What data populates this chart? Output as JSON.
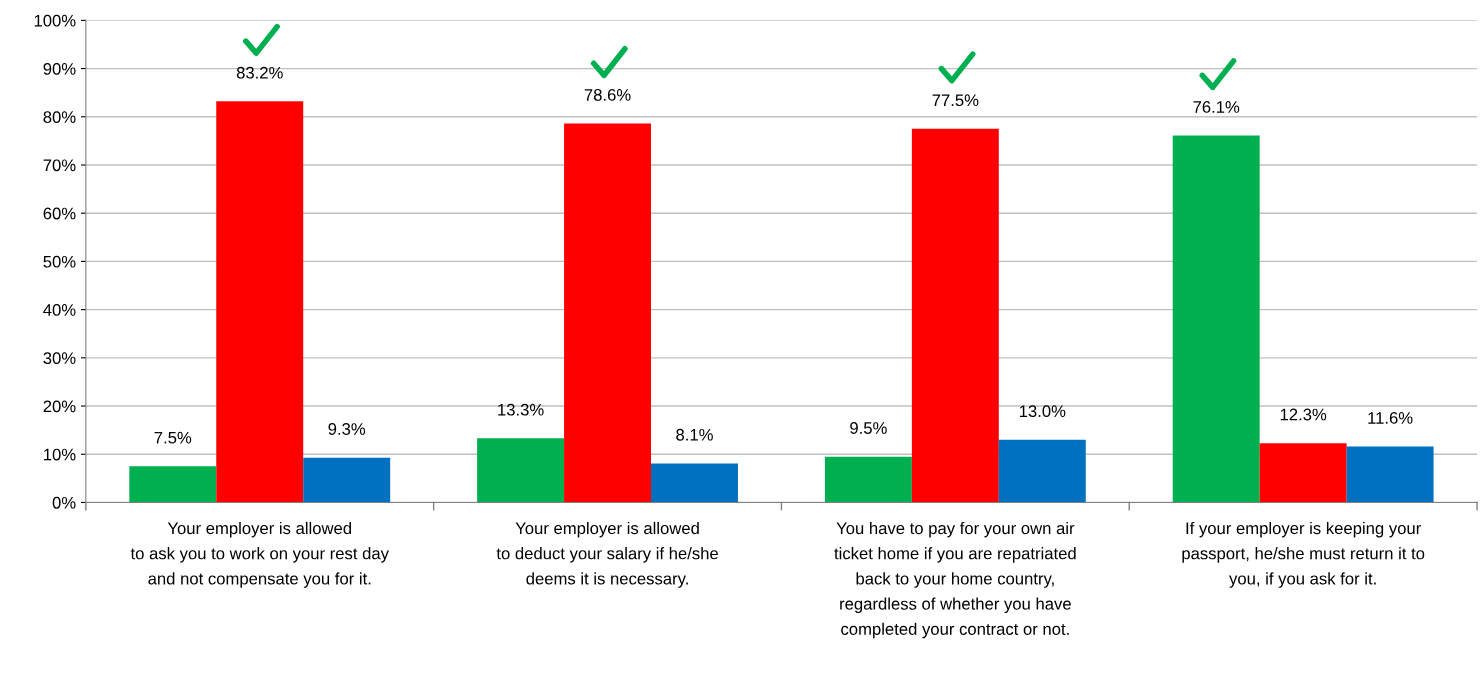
{
  "chart_data": {
    "type": "bar",
    "categories": [
      "Your employer is allowed\nto ask you to work on your rest day\nand not compensate you for it.",
      "Your employer is allowed\nto deduct your salary if he/she\ndeems it is necessary.",
      "You have to pay for your own air\nticket home if you are repatriated\nback to your home country,\nregardless of whether you have\ncompleted your contract or not.",
      "If your employer is keeping your\npassport, he/she must return it to\nyou, if you ask for it."
    ],
    "series": [
      {
        "color": "#00b050",
        "values": [
          7.5,
          13.3,
          9.5,
          76.1
        ],
        "value_labels": [
          "7.5%",
          "13.3%",
          "9.5%",
          "76.1%"
        ]
      },
      {
        "color": "#ff0000",
        "values": [
          83.2,
          78.6,
          77.5,
          12.3
        ],
        "value_labels": [
          "83.2%",
          "78.6%",
          "77.5%",
          "12.3%"
        ]
      },
      {
        "color": "#0070c0",
        "values": [
          9.3,
          8.1,
          13.0,
          11.6
        ],
        "value_labels": [
          "9.3%",
          "8.1%",
          "13.0%",
          "11.6%"
        ]
      }
    ],
    "ylim": [
      0,
      100
    ],
    "yticks": [
      {
        "value": 0,
        "label": "0%"
      },
      {
        "value": 10,
        "label": "10%"
      },
      {
        "value": 20,
        "label": "20%"
      },
      {
        "value": 30,
        "label": "30%"
      },
      {
        "value": 40,
        "label": "40%"
      },
      {
        "value": 50,
        "label": "50%"
      },
      {
        "value": 60,
        "label": "60%"
      },
      {
        "value": 70,
        "label": "70%"
      },
      {
        "value": 80,
        "label": "80%"
      },
      {
        "value": 90,
        "label": "90%"
      },
      {
        "value": 100,
        "label": "100%"
      }
    ],
    "grid": "y"
  }
}
